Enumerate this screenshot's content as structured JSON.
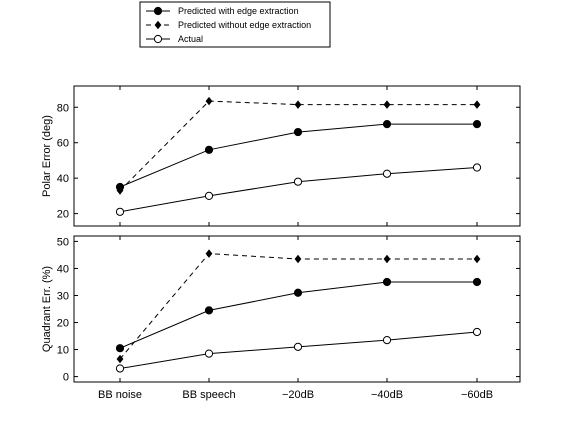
{
  "chart_data": {
    "type": "line",
    "categories": [
      "BB noise",
      "BB speech",
      "−20dB",
      "−40dB",
      "−60dB"
    ],
    "legend": {
      "position": "top-left",
      "entries": [
        {
          "label": "Predicted with edge extraction",
          "style": "solid",
          "marker": "filled-circle"
        },
        {
          "label": "Predicted without edge extraction",
          "style": "dashed",
          "marker": "filled-diamond"
        },
        {
          "label": "Actual",
          "style": "solid",
          "marker": "open-circle"
        }
      ]
    },
    "panels": [
      {
        "ylabel": "Polar Error (deg)",
        "ylim": [
          13,
          92
        ],
        "yticks": [
          20,
          40,
          60,
          80
        ],
        "series": [
          {
            "name": "Predicted with edge extraction",
            "values": [
              35,
              56,
              66,
              70.5,
              70.5
            ]
          },
          {
            "name": "Predicted without edge extraction",
            "values": [
              33,
              83.5,
              81.5,
              81.5,
              81.5
            ]
          },
          {
            "name": "Actual",
            "values": [
              21,
              30,
              38,
              42.5,
              46
            ]
          }
        ]
      },
      {
        "ylabel": "Quadrant Err. (%)",
        "ylim": [
          -2,
          52
        ],
        "yticks": [
          0,
          10,
          20,
          30,
          40,
          50
        ],
        "series": [
          {
            "name": "Predicted with edge extraction",
            "values": [
              10.5,
              24.5,
              31,
              35,
              35
            ]
          },
          {
            "name": "Predicted without edge extraction",
            "values": [
              6.5,
              45.5,
              43.5,
              43.5,
              43.5
            ]
          },
          {
            "name": "Actual",
            "values": [
              3,
              8.5,
              11,
              13.5,
              16.5
            ]
          }
        ]
      }
    ]
  }
}
